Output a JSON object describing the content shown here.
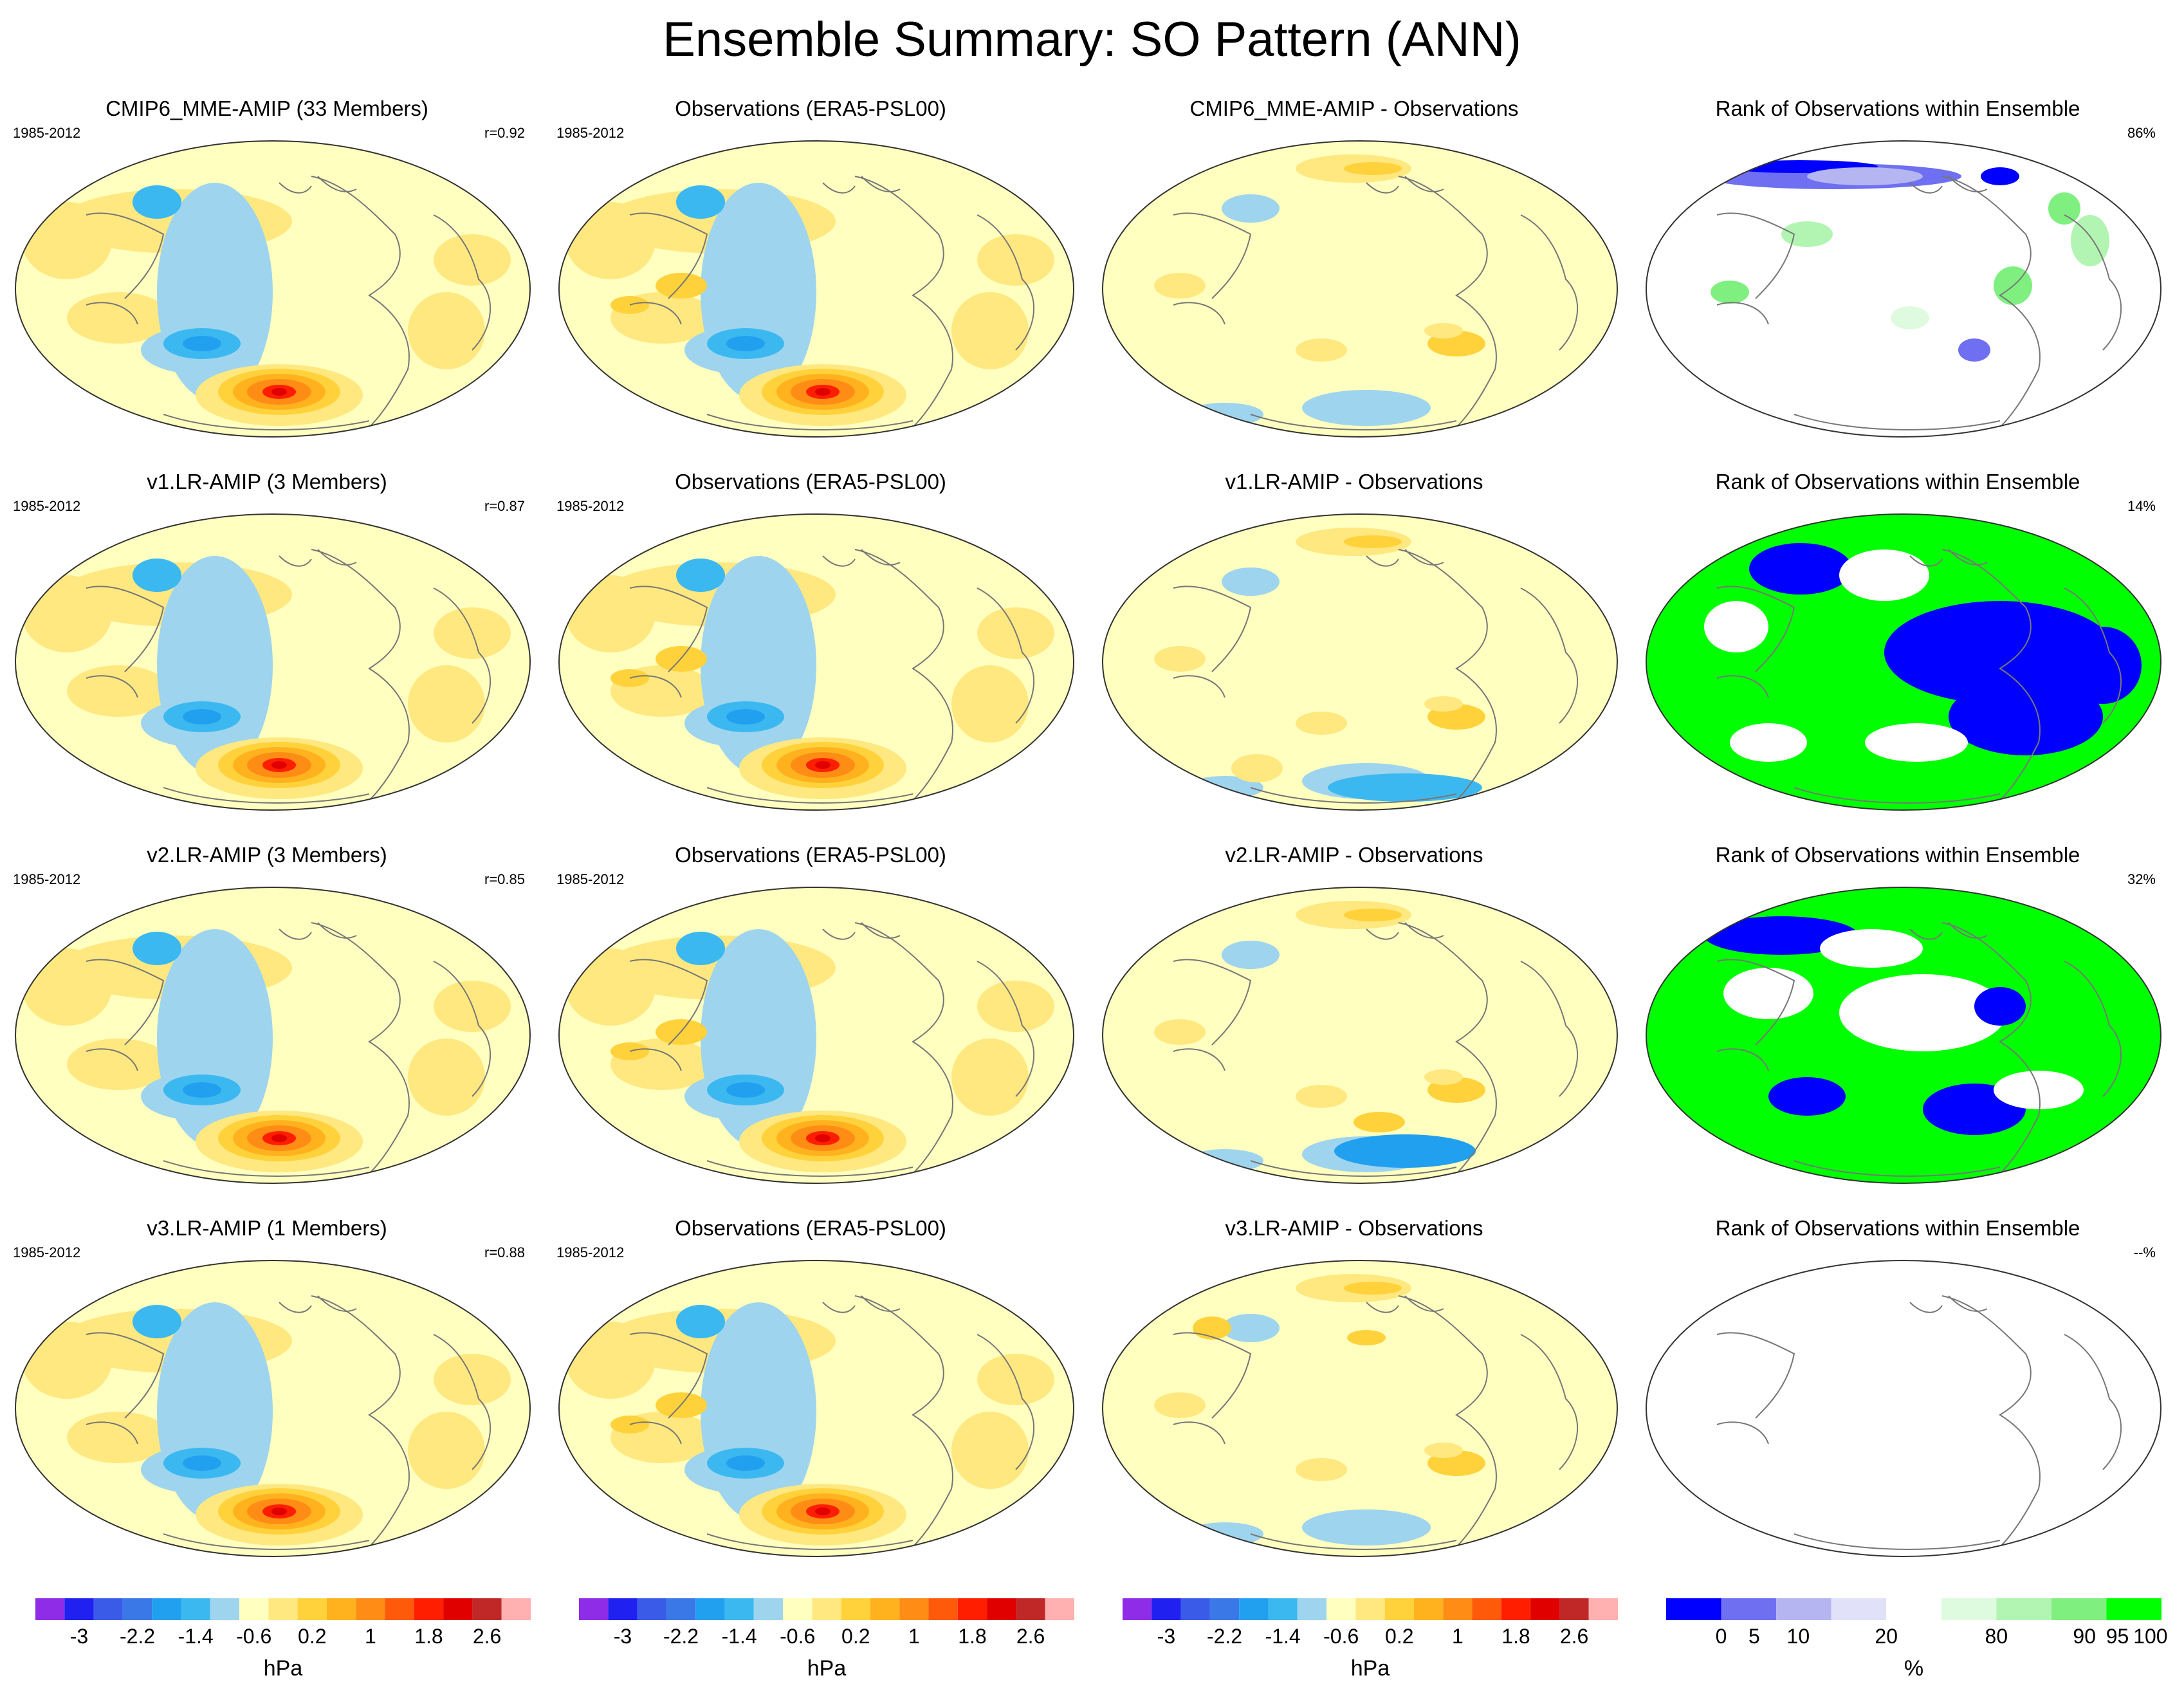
{
  "title": "Ensemble Summary: SO Pattern (ANN)",
  "period": "1985-2012",
  "colors": {
    "pattern": [
      "#8e2ce8",
      "#2020f0",
      "#3a5ae8",
      "#3a78e8",
      "#22a0f0",
      "#3cb8f0",
      "#9ed4ee",
      "#ffffc0",
      "#ffe880",
      "#ffd23c",
      "#ffb21e",
      "#ff8c14",
      "#ff5a0a",
      "#ff1e00",
      "#e00000",
      "#c02828",
      "#ffb0b0"
    ],
    "rank": [
      "#0000ff",
      "#6f6ff2",
      "#b5b5f2",
      "#e1e1fa",
      "#ffffff",
      "#dffbdf",
      "#b2f5b2",
      "#7ff07f",
      "#00ff00"
    ],
    "ocean_pale": "#ffffc0",
    "coast": "#777777"
  },
  "rows": [
    {
      "model": {
        "title": "CMIP6_MME-AMIP (33 Members)",
        "corr": "r=0.92"
      },
      "obs": {
        "title": "Observations (ERA5-PSL00)"
      },
      "diff": {
        "title": "CMIP6_MME-AMIP - Observations"
      },
      "rank": {
        "title": "Rank of Observations within Ensemble",
        "percent": "86%"
      }
    },
    {
      "model": {
        "title": "v1.LR-AMIP (3 Members)",
        "corr": "r=0.87"
      },
      "obs": {
        "title": "Observations (ERA5-PSL00)"
      },
      "diff": {
        "title": "v1.LR-AMIP - Observations"
      },
      "rank": {
        "title": "Rank of Observations within Ensemble",
        "percent": "14%"
      }
    },
    {
      "model": {
        "title": "v2.LR-AMIP (3 Members)",
        "corr": "r=0.85"
      },
      "obs": {
        "title": "Observations (ERA5-PSL00)"
      },
      "diff": {
        "title": "v2.LR-AMIP - Observations"
      },
      "rank": {
        "title": "Rank of Observations within Ensemble",
        "percent": "32%"
      }
    },
    {
      "model": {
        "title": "v3.LR-AMIP (1 Members)",
        "corr": "r=0.88"
      },
      "obs": {
        "title": "Observations (ERA5-PSL00)"
      },
      "diff": {
        "title": "v3.LR-AMIP - Observations"
      },
      "rank": {
        "title": "Rank of Observations within Ensemble",
        "percent": "--%"
      }
    }
  ],
  "colorbar_pattern": {
    "tick_labels": [
      "-3",
      "-2.2",
      "-1.4",
      "-0.6",
      "0.2",
      "1",
      "1.8",
      "2.6"
    ],
    "unit": "hPa"
  },
  "colorbar_rank": {
    "tick_labels": [
      "0",
      "5",
      "10",
      "20",
      "80",
      "90",
      "95",
      "100"
    ],
    "unit": "%"
  }
}
